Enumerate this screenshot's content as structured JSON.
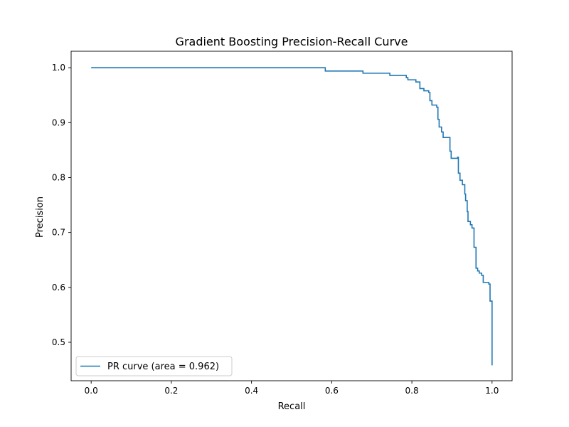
{
  "chart_data": {
    "type": "line",
    "title": "Gradient Boosting Precision-Recall Curve",
    "xlabel": "Recall",
    "ylabel": "Precision",
    "xlim": [
      -0.05,
      1.05
    ],
    "ylim": [
      0.43,
      1.03
    ],
    "xticks": [
      0.0,
      0.2,
      0.4,
      0.6,
      0.8,
      1.0
    ],
    "yticks": [
      0.5,
      0.6,
      0.7,
      0.8,
      0.9,
      1.0
    ],
    "xtick_labels": [
      "0.0",
      "0.2",
      "0.4",
      "0.6",
      "0.8",
      "1.0"
    ],
    "ytick_labels": [
      "0.5",
      "0.6",
      "0.7",
      "0.8",
      "0.9",
      "1.0"
    ],
    "grid": false,
    "legend_position": "lower-left",
    "series": [
      {
        "name": "PR curve (area = 0.962)",
        "color": "#1f77b4",
        "step": true,
        "x": [
          0.0,
          0.584,
          0.678,
          0.745,
          0.786,
          0.79,
          0.81,
          0.82,
          0.83,
          0.842,
          0.845,
          0.85,
          0.862,
          0.865,
          0.868,
          0.874,
          0.878,
          0.884,
          0.893,
          0.895,
          0.898,
          0.914,
          0.916,
          0.92,
          0.926,
          0.932,
          0.934,
          0.938,
          0.94,
          0.946,
          0.95,
          0.955,
          0.96,
          0.964,
          0.968,
          0.974,
          0.978,
          0.985,
          0.992,
          0.995,
          1.0
        ],
        "y": [
          1.0,
          0.994,
          0.99,
          0.986,
          0.982,
          0.978,
          0.974,
          0.962,
          0.958,
          0.955,
          0.94,
          0.932,
          0.928,
          0.906,
          0.892,
          0.883,
          0.873,
          0.873,
          0.873,
          0.848,
          0.835,
          0.837,
          0.808,
          0.795,
          0.787,
          0.77,
          0.758,
          0.738,
          0.72,
          0.714,
          0.708,
          0.673,
          0.635,
          0.63,
          0.626,
          0.622,
          0.609,
          0.609,
          0.606,
          0.575,
          0.458
        ]
      }
    ]
  }
}
